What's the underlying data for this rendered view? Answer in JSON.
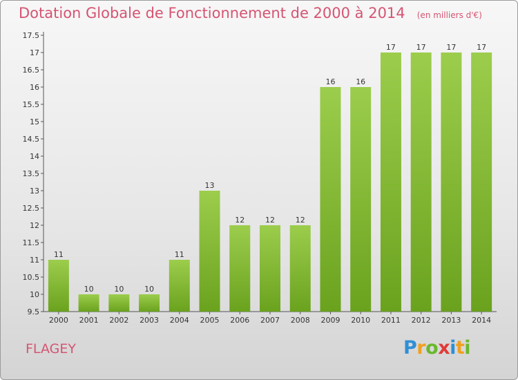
{
  "title": "Dotation Globale de Fonctionnement de 2000 à 2014",
  "unit": "(en milliers d'€)",
  "commune": "FLAGEY",
  "logo": {
    "letters": [
      "P",
      "r",
      "o",
      "x",
      "i",
      "t",
      "i"
    ],
    "colors": [
      "#2f8fd6",
      "#f0a020",
      "#6ab82e",
      "#e03a3a",
      "#2f8fd6",
      "#f0a020",
      "#6ab82e"
    ]
  },
  "chart_data": {
    "type": "bar",
    "categories": [
      "2000",
      "2001",
      "2002",
      "2003",
      "2004",
      "2005",
      "2006",
      "2007",
      "2008",
      "2009",
      "2010",
      "2011",
      "2012",
      "2013",
      "2014"
    ],
    "values": [
      11,
      10,
      10,
      10,
      11,
      13,
      12,
      12,
      12,
      16,
      16,
      17,
      17,
      17,
      17
    ],
    "labels": [
      "11",
      "10",
      "10",
      "10",
      "11",
      "13",
      "12",
      "12",
      "12",
      "16",
      "16",
      "17",
      "17",
      "17",
      "17"
    ],
    "ylim": [
      9.5,
      17.5
    ],
    "yticks": [
      "9.5",
      "10",
      "10.5",
      "11",
      "11.5",
      "12",
      "12.5",
      "13",
      "13.5",
      "14",
      "14.5",
      "15",
      "15.5",
      "16",
      "16.5",
      "17",
      "17.5"
    ],
    "grid": false,
    "bar_color_top": "#9ccd4c",
    "bar_color_bottom": "#6aa21e"
  }
}
